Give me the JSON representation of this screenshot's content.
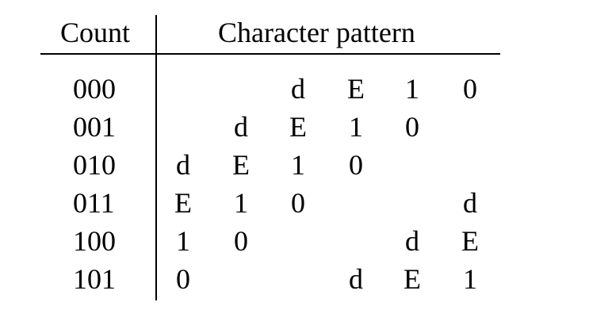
{
  "table": {
    "headers": {
      "count": "Count",
      "pattern": "Character pattern"
    },
    "rows": [
      {
        "count": "000",
        "cells": [
          "",
          "",
          "d",
          "E",
          "1",
          "0"
        ]
      },
      {
        "count": "001",
        "cells": [
          "",
          "d",
          "E",
          "1",
          "0",
          ""
        ]
      },
      {
        "count": "010",
        "cells": [
          "d",
          "E",
          "1",
          "0",
          "",
          ""
        ]
      },
      {
        "count": "011",
        "cells": [
          "E",
          "1",
          "0",
          "",
          "",
          "d"
        ]
      },
      {
        "count": "100",
        "cells": [
          "1",
          "0",
          "",
          "",
          "d",
          "E"
        ]
      },
      {
        "count": "101",
        "cells": [
          "0",
          "",
          "",
          "d",
          "E",
          "1"
        ]
      }
    ]
  }
}
